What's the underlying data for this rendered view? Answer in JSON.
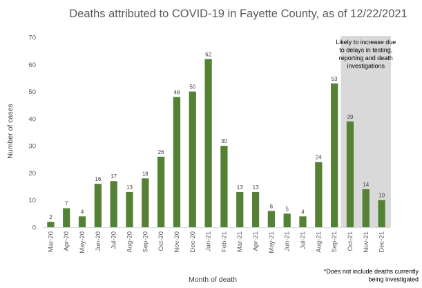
{
  "chart_data": {
    "type": "bar",
    "title": "Deaths attributed to COVID-19 in Fayette County, as of 12/22/2021",
    "xlabel": "Month of death",
    "ylabel": "Number of cases",
    "ylim": [
      0,
      70
    ],
    "yticks": [
      "0",
      "10",
      "20",
      "30",
      "40",
      "50",
      "60",
      "70"
    ],
    "categories": [
      "Mar-20",
      "Apr-20",
      "May-20",
      "Jun-20",
      "Jul-20",
      "Aug-20",
      "Sep-20",
      "Oct-20",
      "Nov-20",
      "Dec-20",
      "Jan-21",
      "Feb-21",
      "Mar-21",
      "Apr-21",
      "May-21",
      "Jun-21",
      "Jul-21",
      "Aug-21",
      "Sep-21",
      "Oct-21",
      "Nov-21",
      "Dec-21"
    ],
    "values": [
      2,
      7,
      4,
      16,
      17,
      13,
      18,
      26,
      48,
      50,
      62,
      30,
      13,
      13,
      6,
      5,
      4,
      24,
      53,
      39,
      14,
      10
    ],
    "bar_color": "#548235",
    "shaded_region": {
      "start_category": "Oct-21",
      "end_category": "Dec-21",
      "color": "#d9d9d9",
      "note_lines": [
        "Likely to increase due",
        "to delays in testing,",
        "reporting and death",
        "investigations"
      ]
    },
    "grid": false,
    "legend": "none"
  },
  "footnote_lines": [
    "*Does not include deaths currently",
    "being investigated"
  ]
}
